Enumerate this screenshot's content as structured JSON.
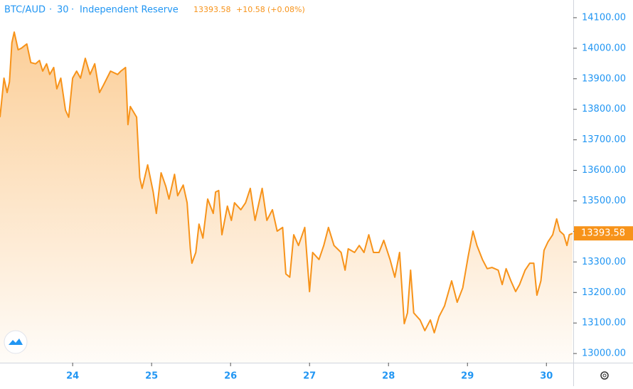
{
  "chart_data": {
    "type": "area",
    "symbol": "BTC/AUD",
    "interval": "30",
    "exchange": "Independent Reserve",
    "change": "+10.58",
    "change_pct": "(+0.08%)",
    "color": "#f7931a",
    "xlim": [
      23.08,
      30.34
    ],
    "xticks": [
      24,
      25,
      26,
      27,
      28,
      29,
      30
    ],
    "ylim": [
      12970,
      14158
    ],
    "yticks": [
      {
        "value": 13000,
        "label": "13000.00"
      },
      {
        "value": 13100,
        "label": "13100.00"
      },
      {
        "value": 13200,
        "label": "13200.00"
      },
      {
        "value": 13300,
        "label": "13300.00"
      },
      {
        "value": 13400,
        "label": "13400.00"
      },
      {
        "value": 13500,
        "label": "13500.00"
      },
      {
        "value": 13600,
        "label": "13600.00"
      },
      {
        "value": 13700,
        "label": "13700.00"
      },
      {
        "value": 13800,
        "label": "13800.00"
      },
      {
        "value": 13900,
        "label": "13900.00"
      },
      {
        "value": 14000,
        "label": "14000.00"
      },
      {
        "value": 14100,
        "label": "14100.00"
      }
    ],
    "x": [
      23.08,
      23.13,
      23.17,
      23.2,
      23.23,
      23.26,
      23.31,
      23.35,
      23.42,
      23.47,
      23.53,
      23.58,
      23.62,
      23.67,
      23.71,
      23.76,
      23.8,
      23.85,
      23.91,
      23.95,
      24.0,
      24.05,
      24.1,
      24.16,
      24.22,
      24.28,
      24.34,
      24.39,
      24.48,
      24.57,
      24.61,
      24.67,
      24.7,
      24.73,
      24.81,
      24.85,
      24.88,
      24.95,
      25.02,
      25.06,
      25.12,
      25.18,
      25.22,
      25.29,
      25.33,
      25.4,
      25.45,
      25.49,
      25.51,
      25.56,
      25.6,
      25.65,
      25.71,
      25.78,
      25.81,
      25.85,
      25.89,
      25.96,
      26.01,
      26.05,
      26.13,
      26.19,
      26.25,
      26.31,
      26.4,
      26.46,
      26.53,
      26.59,
      26.66,
      26.7,
      26.75,
      26.8,
      26.86,
      26.94,
      27.0,
      27.04,
      27.12,
      27.18,
      27.24,
      27.31,
      27.4,
      27.45,
      27.49,
      27.57,
      27.63,
      27.69,
      27.75,
      27.81,
      27.88,
      27.94,
      28.02,
      28.08,
      28.14,
      28.2,
      28.24,
      28.28,
      28.32,
      28.4,
      28.46,
      28.53,
      28.58,
      28.64,
      28.71,
      28.8,
      28.87,
      28.94,
      29.01,
      29.07,
      29.12,
      29.19,
      29.25,
      29.31,
      29.39,
      29.44,
      29.49,
      29.55,
      29.61,
      29.66,
      29.73,
      29.79,
      29.84,
      29.88,
      29.93,
      29.97,
      30.02,
      30.08,
      30.13,
      30.17,
      30.22,
      30.26,
      30.29,
      30.33
    ],
    "values": [
      13774,
      13902,
      13855,
      13890,
      14018,
      14053,
      13995,
      14000,
      14014,
      13953,
      13949,
      13960,
      13925,
      13949,
      13914,
      13937,
      13867,
      13902,
      13797,
      13774,
      13902,
      13925,
      13902,
      13967,
      13914,
      13949,
      13855,
      13879,
      13925,
      13914,
      13925,
      13937,
      13750,
      13809,
      13774,
      13576,
      13541,
      13618,
      13529,
      13459,
      13592,
      13548,
      13506,
      13587,
      13517,
      13552,
      13494,
      13343,
      13296,
      13331,
      13424,
      13378,
      13506,
      13459,
      13529,
      13534,
      13389,
      13483,
      13436,
      13494,
      13471,
      13494,
      13541,
      13436,
      13541,
      13436,
      13471,
      13401,
      13413,
      13261,
      13250,
      13389,
      13354,
      13413,
      13203,
      13331,
      13308,
      13354,
      13413,
      13354,
      13331,
      13273,
      13343,
      13331,
      13354,
      13331,
      13389,
      13331,
      13331,
      13371,
      13308,
      13250,
      13331,
      13098,
      13133,
      13273,
      13133,
      13110,
      13075,
      13110,
      13068,
      13121,
      13156,
      13238,
      13168,
      13215,
      13319,
      13401,
      13354,
      13308,
      13278,
      13282,
      13273,
      13226,
      13278,
      13238,
      13203,
      13226,
      13273,
      13296,
      13296,
      13191,
      13238,
      13338,
      13366,
      13389,
      13441,
      13401,
      13389,
      13354,
      13389,
      13393.58
    ]
  }
}
